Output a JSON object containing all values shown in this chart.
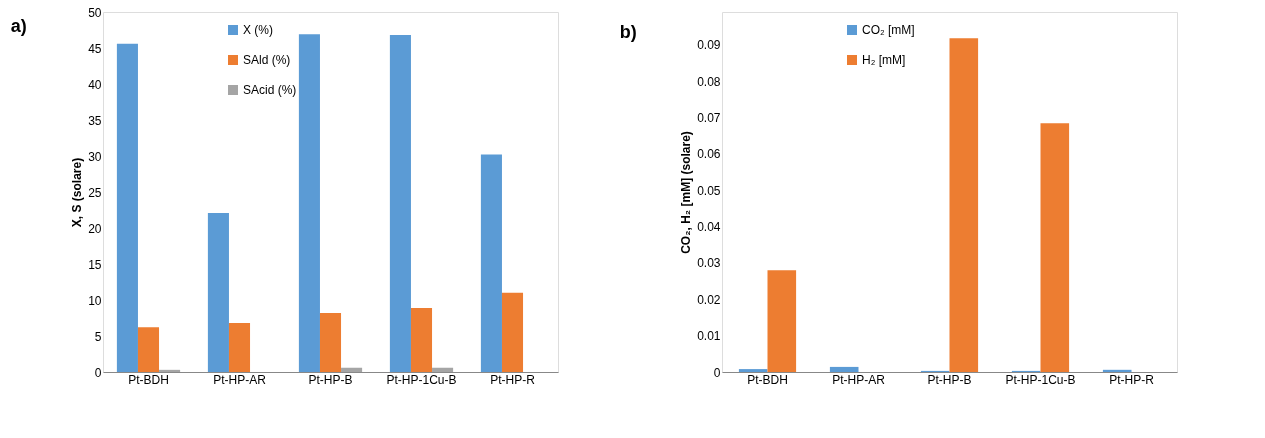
{
  "chart_data": [
    {
      "type": "bar",
      "title": "a)",
      "ylabel": "X, S (solare)",
      "categories": [
        "Pt-BDH",
        "Pt-HP-AR",
        "Pt-HP-B",
        "Pt-HP-1Cu-B",
        "Pt-HP-R"
      ],
      "series": [
        {
          "name": "X (%)",
          "color": "#5b9bd5",
          "values": [
            45.6,
            22.1,
            46.9,
            46.8,
            30.2
          ]
        },
        {
          "name": "SAld (%)",
          "color": "#ed7d31",
          "values": [
            6.2,
            6.8,
            8.2,
            8.9,
            11.0
          ]
        },
        {
          "name": "SAcid (%)",
          "color": "#a5a5a5",
          "values": [
            0.3,
            null,
            0.6,
            0.6,
            null
          ]
        }
      ],
      "ylim": [
        0,
        50
      ],
      "yticks": [
        0,
        5,
        10,
        15,
        20,
        25,
        30,
        35,
        40,
        45,
        50
      ],
      "grid": false,
      "legend": "top left"
    },
    {
      "type": "bar",
      "title": "b)",
      "ylabel": "CO₂, H₂ [mM] (solare)",
      "categories": [
        "Pt-BDH",
        "Pt-HP-AR",
        "Pt-HP-B",
        "Pt-HP-1Cu-B",
        "Pt-HP-R"
      ],
      "series": [
        {
          "name": "CO₂ [mM]",
          "color": "#5b9bd5",
          "values": [
            0.0008,
            0.0014,
            0.0003,
            0.0003,
            0.0006
          ]
        },
        {
          "name": "H₂ [mM]",
          "color": "#ed7d31",
          "values": [
            0.028,
            0,
            0.0918,
            0.0684,
            0
          ]
        }
      ],
      "ylim": [
        0,
        0.099
      ],
      "yticks": [
        0,
        0.01,
        0.02,
        0.03,
        0.04,
        0.05,
        0.06,
        0.07,
        0.08,
        0.09
      ],
      "grid": false,
      "legend": "top left"
    }
  ]
}
